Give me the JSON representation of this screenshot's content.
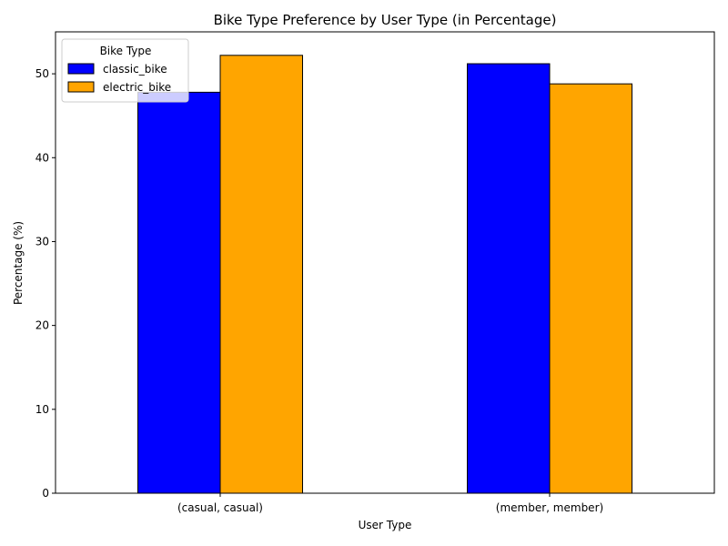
{
  "chart_data": {
    "type": "bar",
    "title": "Bike Type Preference by User Type (in Percentage)",
    "xlabel": "User Type",
    "ylabel": "Percentage (%)",
    "categories": [
      "(casual, casual)",
      "(member, member)"
    ],
    "series": [
      {
        "name": "classic_bike",
        "color": "#0000ff",
        "values": [
          47.8,
          51.2
        ]
      },
      {
        "name": "electric_bike",
        "color": "#ffa500",
        "values": [
          52.2,
          48.8
        ]
      }
    ],
    "ylim": [
      0,
      55
    ],
    "yticks": [
      0,
      10,
      20,
      30,
      40,
      50
    ],
    "grid": false,
    "legend": {
      "title": "Bike Type",
      "position": "top-left"
    }
  }
}
